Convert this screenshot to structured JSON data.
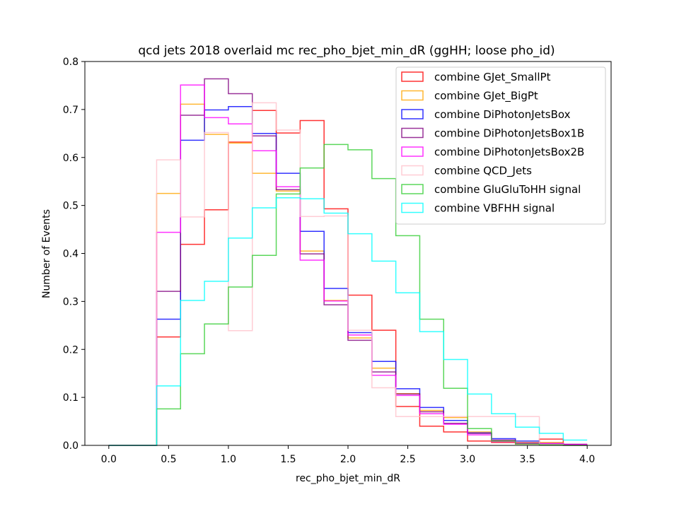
{
  "chart_data": {
    "type": "step-histogram",
    "title": "qcd jets 2018 overlaid mc rec_pho_bjet_min_dR (ggHH; loose pho_id)",
    "xlabel": "rec_pho_bjet_min_dR",
    "ylabel": "Number of Events",
    "xlim": [
      -0.2,
      4.2
    ],
    "ylim": [
      0.0,
      0.8
    ],
    "xticks": [
      "0.0",
      "0.5",
      "1.0",
      "1.5",
      "2.0",
      "2.5",
      "3.0",
      "3.5",
      "4.0"
    ],
    "yticks": [
      "0.0",
      "0.1",
      "0.2",
      "0.3",
      "0.4",
      "0.5",
      "0.6",
      "0.7",
      "0.8"
    ],
    "grid": false,
    "legend_position": "top-right",
    "bin_edges": [
      0.0,
      0.2,
      0.4,
      0.6,
      0.8,
      1.0,
      1.2,
      1.4,
      1.6,
      1.8,
      2.0,
      2.2,
      2.4,
      2.6,
      2.8,
      3.0,
      3.2,
      3.4,
      3.6,
      3.8,
      4.0
    ],
    "series": [
      {
        "name": "combine GJet_SmallPt",
        "color": "#ff0000",
        "values": [
          0,
          0,
          0.226,
          0.419,
          0.491,
          0.632,
          0.698,
          0.651,
          0.677,
          0.493,
          0.313,
          0.24,
          0.081,
          0.04,
          0.028,
          0.009,
          0.006,
          0.003,
          0.013,
          0.002
        ]
      },
      {
        "name": "combine GJet_BigPt",
        "color": "#ffa500",
        "values": [
          0,
          0,
          0.525,
          0.711,
          0.648,
          0.63,
          0.567,
          0.53,
          0.405,
          0.302,
          0.224,
          0.161,
          0.108,
          0.073,
          0.058,
          0.028,
          0.009,
          0.006,
          0.006,
          0.002
        ]
      },
      {
        "name": "combine DiPhotonJetsBox",
        "color": "#0000ff",
        "values": [
          0,
          0,
          0.263,
          0.636,
          0.699,
          0.706,
          0.65,
          0.567,
          0.446,
          0.327,
          0.235,
          0.175,
          0.118,
          0.079,
          0.052,
          0.026,
          0.014,
          0.009,
          0.004,
          0.002
        ]
      },
      {
        "name": "combine DiPhotonJetsBox1B",
        "color": "#800080",
        "values": [
          0,
          0,
          0.321,
          0.688,
          0.764,
          0.733,
          0.645,
          0.533,
          0.399,
          0.293,
          0.219,
          0.153,
          0.107,
          0.07,
          0.046,
          0.025,
          0.011,
          0.005,
          0.003,
          0.002
        ]
      },
      {
        "name": "combine DiPhotonJetsBox2B",
        "color": "#ff00ff",
        "values": [
          0,
          0,
          0.444,
          0.751,
          0.683,
          0.67,
          0.614,
          0.539,
          0.386,
          0.301,
          0.23,
          0.146,
          0.104,
          0.066,
          0.044,
          0.022,
          0.008,
          0.004,
          0.004,
          0.002
        ]
      },
      {
        "name": "combine QCD_Jets",
        "color": "#ffc0cb",
        "values": [
          0,
          0,
          0.595,
          0.476,
          0.652,
          0.239,
          0.714,
          0.657,
          0.477,
          0.478,
          0.24,
          0.12,
          0.06,
          0.06,
          0.06,
          0.06,
          0.06,
          0.06,
          0.002,
          0.0
        ]
      },
      {
        "name": "combine GluGluToHH signal",
        "color": "#32cd32",
        "values": [
          0,
          0,
          0.076,
          0.191,
          0.253,
          0.33,
          0.396,
          0.524,
          0.578,
          0.627,
          0.616,
          0.556,
          0.437,
          0.263,
          0.119,
          0.035,
          0.009,
          0.003,
          0.001,
          0.0
        ]
      },
      {
        "name": "combine VBFHH signal",
        "color": "#00ffff",
        "values": [
          0,
          0,
          0.124,
          0.302,
          0.342,
          0.432,
          0.495,
          0.516,
          0.514,
          0.484,
          0.441,
          0.384,
          0.318,
          0.237,
          0.179,
          0.107,
          0.066,
          0.038,
          0.025,
          0.011
        ]
      }
    ]
  }
}
